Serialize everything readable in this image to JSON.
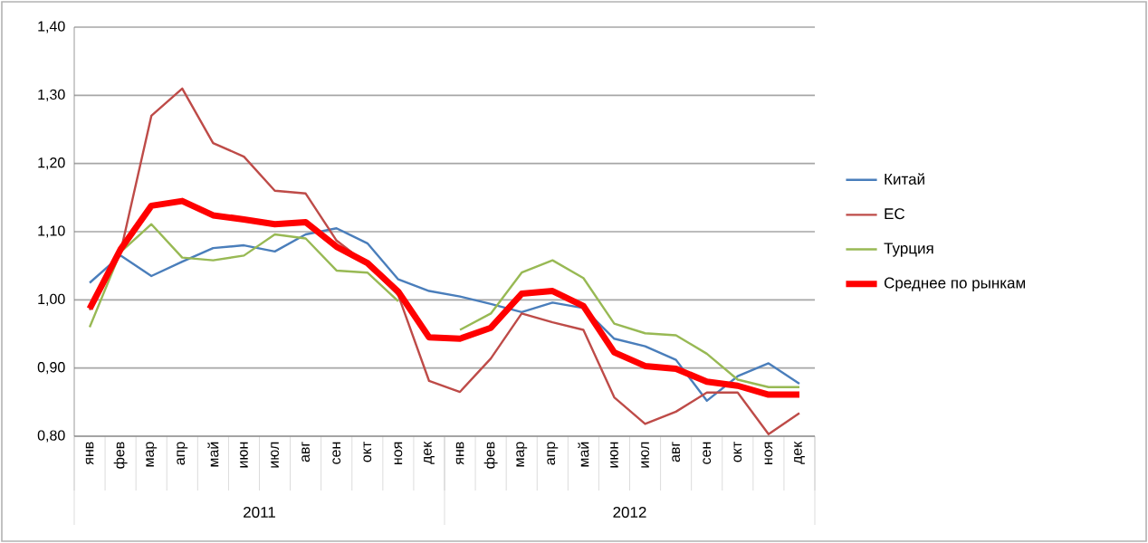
{
  "chart_data": {
    "type": "line",
    "categories": [
      "янв",
      "фев",
      "мар",
      "апр",
      "май",
      "июн",
      "июл",
      "авг",
      "сен",
      "окт",
      "ноя",
      "дек",
      "янв",
      "фев",
      "мар",
      "апр",
      "май",
      "июн",
      "июл",
      "авг",
      "сен",
      "окт",
      "ноя",
      "дек"
    ],
    "annotations": [
      "2011",
      "2012"
    ],
    "series": [
      {
        "name": "Китай",
        "color": "#4a7ebb",
        "values": [
          1.025,
          1.065,
          1.035,
          1.056,
          1.076,
          1.08,
          1.071,
          1.096,
          1.105,
          1.083,
          1.03,
          1.013,
          1.005,
          0.994,
          0.982,
          0.996,
          0.988,
          0.943,
          0.932,
          0.912,
          0.852,
          0.888,
          0.907,
          0.877
        ]
      },
      {
        "name": "ЕС",
        "color": "#be4b48",
        "values": [
          0.985,
          1.07,
          1.27,
          1.31,
          1.23,
          1.21,
          1.16,
          1.156,
          1.087,
          1.052,
          1.007,
          0.881,
          0.865,
          0.914,
          0.98,
          0.967,
          0.956,
          0.857,
          0.818,
          0.836,
          0.864,
          0.864,
          0.803,
          0.834
        ]
      },
      {
        "name": "Турция",
        "color": "#98b954",
        "values": [
          0.96,
          1.07,
          1.111,
          1.062,
          1.058,
          1.065,
          1.096,
          1.09,
          1.043,
          1.04,
          0.998,
          null,
          0.956,
          0.98,
          1.04,
          1.058,
          1.032,
          0.965,
          0.951,
          0.948,
          0.921,
          0.883,
          0.872,
          0.872
        ]
      },
      {
        "name": "Среднее по рынкам",
        "color": "#ff0000",
        "values": [
          0.987,
          1.074,
          1.138,
          1.145,
          1.124,
          1.118,
          1.111,
          1.114,
          1.078,
          1.054,
          1.012,
          0.945,
          0.943,
          0.959,
          1.009,
          1.013,
          0.991,
          0.923,
          0.903,
          0.899,
          0.88,
          0.874,
          0.861,
          0.861
        ]
      }
    ],
    "ylim": [
      0.8,
      1.4
    ],
    "yticks": [
      {
        "value": 0.8,
        "label": "0,80"
      },
      {
        "value": 0.9,
        "label": "0,90"
      },
      {
        "value": 1.0,
        "label": "1,00"
      },
      {
        "value": 1.1,
        "label": "1,10"
      },
      {
        "value": 1.2,
        "label": "1,20"
      },
      {
        "value": 1.3,
        "label": "1,30"
      },
      {
        "value": 1.4,
        "label": "1,40"
      }
    ],
    "grid": "y",
    "legend": "right",
    "marker": "none"
  }
}
